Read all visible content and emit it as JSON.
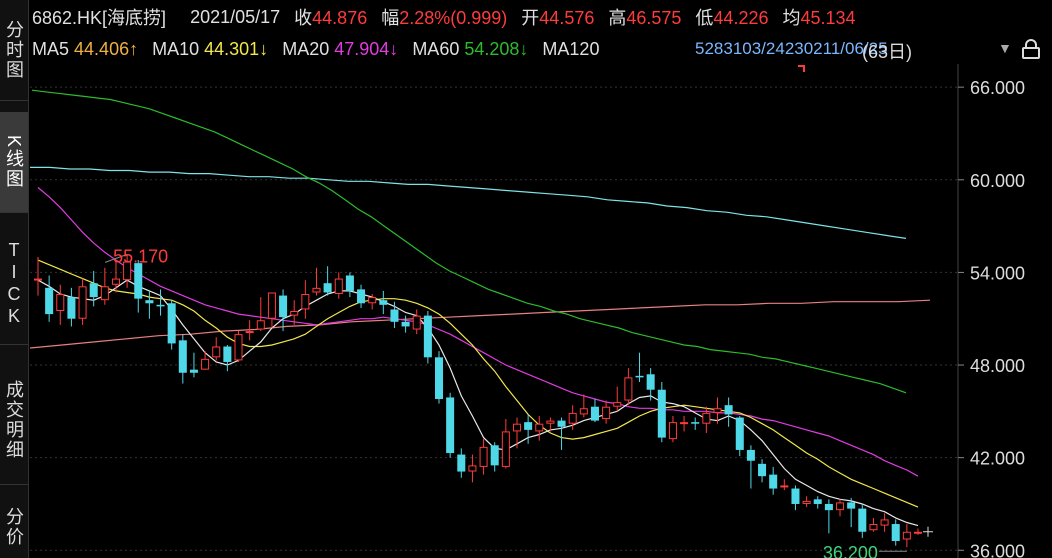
{
  "sidebar": {
    "tabs": [
      {
        "label": "分时图",
        "active": false
      },
      {
        "label": "K线图",
        "active": true
      },
      {
        "label": "TICK",
        "active": false
      },
      {
        "label": "成交明细",
        "active": false
      },
      {
        "label": "分价",
        "active": false
      }
    ]
  },
  "header": {
    "symbol": "6862.HK[海底捞]",
    "date": "2021/05/17",
    "close_label": "收",
    "close_value": "44.876",
    "change_label": "幅",
    "change_value": "2.28%(0.999)",
    "open_label": "开",
    "open_value": "44.576",
    "high_label": "高",
    "high_value": "46.575",
    "low_label": "低",
    "low_value": "44.226",
    "avg_label": "均",
    "avg_value": "45.134"
  },
  "ma_bar": {
    "ma5_label": "MA5",
    "ma5_value": "44.406↑",
    "ma10_label": "MA10",
    "ma10_value": "44.301↓",
    "ma20_label": "MA20",
    "ma20_value": "47.904↓",
    "ma60_label": "MA60",
    "ma60_value": "54.208↓",
    "ma120_label": "MA120",
    "overlay_text": "5283103/24230211/06/25",
    "period": "(63日)"
  },
  "colors": {
    "up": "#ff3b3b",
    "down": "#4fd9e8",
    "ma5": "#e8e8e8",
    "ma10": "#f2e74c",
    "ma20": "#e03ce0",
    "ma60": "#2dbb2d",
    "ma120": "#7ee3e8",
    "ma250": "#e88080",
    "high_annot": "#ff3b3b",
    "low_annot": "#3bd47a"
  },
  "icons": {
    "dropdown": "triangle-down-icon",
    "lock": "lock-icon"
  },
  "chart_data": {
    "type": "candlestick",
    "y_ticks": [
      "66.000",
      "60.000",
      "54.000",
      "48.000",
      "42.000",
      "36.000"
    ],
    "ylim": [
      35.5,
      67.5
    ],
    "annotations": {
      "high": "55.170",
      "low": "36.200"
    },
    "candles": [
      [
        53.6,
        53.6,
        55.0,
        52.5
      ],
      [
        53.0,
        51.3,
        53.8,
        50.8
      ],
      [
        51.5,
        52.6,
        53.2,
        50.6
      ],
      [
        52.4,
        51.0,
        53.0,
        50.5
      ],
      [
        51.0,
        53.1,
        53.6,
        50.6
      ],
      [
        53.3,
        52.4,
        54.1,
        51.8
      ],
      [
        52.2,
        53.1,
        54.3,
        51.9
      ],
      [
        53.2,
        53.6,
        54.7,
        52.7
      ],
      [
        53.5,
        54.7,
        55.17,
        53.0
      ],
      [
        54.6,
        52.3,
        54.8,
        51.4
      ],
      [
        52.2,
        52.0,
        52.8,
        51.0
      ],
      [
        51.9,
        51.8,
        52.9,
        51.2
      ],
      [
        52.0,
        49.4,
        52.2,
        49.0
      ],
      [
        49.6,
        47.5,
        50.0,
        46.8
      ],
      [
        47.7,
        47.5,
        48.8,
        47.2
      ],
      [
        47.7,
        48.4,
        48.9,
        47.7
      ],
      [
        48.5,
        49.2,
        49.8,
        48.3
      ],
      [
        49.2,
        48.2,
        49.3,
        47.6
      ],
      [
        48.3,
        50.0,
        50.2,
        48.2
      ],
      [
        50.2,
        50.2,
        50.9,
        49.6
      ],
      [
        50.3,
        50.9,
        52.4,
        50.2
      ],
      [
        51.0,
        52.7,
        52.7,
        50.4
      ],
      [
        52.5,
        51.1,
        52.9,
        50.2
      ],
      [
        51.2,
        51.5,
        52.2,
        50.6
      ],
      [
        51.6,
        52.6,
        53.5,
        51.0
      ],
      [
        52.7,
        53.0,
        54.3,
        52.5
      ],
      [
        53.3,
        52.7,
        54.4,
        52.5
      ],
      [
        52.6,
        53.6,
        54.0,
        52.3
      ],
      [
        53.8,
        52.8,
        54.0,
        52.4
      ],
      [
        52.9,
        52.0,
        53.2,
        51.7
      ],
      [
        52.0,
        52.4,
        52.6,
        51.6
      ],
      [
        52.2,
        51.9,
        52.8,
        51.3
      ],
      [
        51.6,
        50.8,
        52.1,
        50.4
      ],
      [
        50.8,
        50.5,
        51.2,
        50.1
      ],
      [
        50.3,
        51.2,
        51.6,
        50.0
      ],
      [
        51.2,
        48.5,
        51.5,
        48.1
      ],
      [
        48.5,
        45.8,
        48.9,
        45.5
      ],
      [
        45.9,
        42.3,
        46.2,
        42.0
      ],
      [
        42.2,
        41.1,
        42.6,
        40.7
      ],
      [
        41.1,
        41.5,
        42.2,
        40.4
      ],
      [
        41.4,
        42.7,
        43.2,
        40.9
      ],
      [
        42.8,
        41.5,
        43.0,
        41.1
      ],
      [
        41.4,
        43.7,
        44.5,
        41.3
      ],
      [
        43.7,
        44.2,
        44.6,
        42.6
      ],
      [
        44.3,
        43.8,
        44.8,
        42.9
      ],
      [
        43.7,
        44.2,
        44.7,
        43.1
      ],
      [
        44.2,
        44.4,
        44.6,
        43.7
      ],
      [
        44.4,
        44.0,
        44.6,
        42.5
      ],
      [
        44.2,
        44.9,
        45.4,
        43.8
      ],
      [
        44.8,
        45.2,
        46.1,
        44.6
      ],
      [
        45.3,
        44.4,
        45.8,
        44.3
      ],
      [
        44.5,
        45.3,
        45.7,
        44.2
      ],
      [
        45.3,
        45.6,
        46.6,
        45.0
      ],
      [
        45.7,
        47.2,
        47.8,
        45.4
      ],
      [
        47.3,
        47.2,
        48.8,
        46.9
      ],
      [
        47.4,
        46.4,
        47.8,
        45.7
      ],
      [
        46.4,
        43.3,
        46.9,
        43.0
      ],
      [
        43.2,
        44.3,
        44.7,
        43.0
      ],
      [
        44.2,
        44.3,
        44.7,
        43.7
      ],
      [
        44.3,
        44.2,
        44.6,
        43.8
      ],
      [
        44.2,
        44.9,
        45.3,
        43.6
      ],
      [
        44.9,
        45.2,
        45.9,
        44.2
      ],
      [
        45.4,
        44.8,
        45.9,
        44.0
      ],
      [
        44.6,
        42.5,
        44.7,
        42.1
      ],
      [
        42.5,
        41.8,
        42.8,
        40.0
      ],
      [
        41.6,
        40.8,
        41.9,
        40.4
      ],
      [
        40.9,
        40.0,
        41.4,
        39.6
      ],
      [
        40.2,
        40.2,
        40.6,
        39.9
      ],
      [
        40.0,
        39.0,
        40.2,
        38.6
      ],
      [
        39.0,
        39.2,
        39.5,
        38.8
      ],
      [
        39.3,
        39.0,
        39.5,
        38.7
      ],
      [
        39.0,
        38.6,
        39.3,
        37.1
      ],
      [
        38.6,
        39.1,
        39.3,
        38.2
      ],
      [
        39.1,
        38.7,
        39.4,
        37.5
      ],
      [
        38.7,
        37.2,
        39.0,
        36.8
      ],
      [
        37.3,
        37.7,
        38.1,
        37.2
      ],
      [
        37.6,
        38.0,
        38.4,
        37.2
      ],
      [
        37.7,
        36.6,
        38.0,
        36.3
      ],
      [
        36.7,
        37.2,
        37.7,
        36.2
      ],
      [
        37.2,
        37.2,
        37.4,
        37.0
      ]
    ],
    "ma5": [
      53.5,
      53.1,
      52.6,
      52.4,
      52.3,
      52.2,
      52.5,
      53.0,
      53.5,
      53.1,
      52.8,
      52.5,
      51.6,
      50.6,
      49.7,
      48.8,
      48.2,
      48.0,
      48.3,
      48.9,
      49.5,
      50.4,
      51.0,
      51.3,
      51.8,
      52.2,
      52.6,
      52.8,
      52.8,
      52.6,
      52.4,
      52.1,
      51.8,
      51.4,
      51.2,
      50.4,
      49.3,
      47.8,
      46.0,
      44.7,
      43.3,
      42.6,
      42.5,
      42.9,
      43.3,
      43.5,
      43.8,
      43.9,
      44.1,
      44.4,
      44.6,
      44.8,
      45.0,
      45.5,
      45.9,
      46.0,
      45.6,
      45.5,
      45.3,
      44.9,
      44.5,
      44.4,
      44.7,
      44.4,
      43.8,
      43.1,
      42.2,
      41.3,
      40.6,
      40.2,
      39.8,
      39.5,
      39.3,
      39.2,
      39.0,
      38.7,
      38.5,
      38.1,
      37.8,
      37.6
    ],
    "ma10": [
      54.8,
      54.5,
      54.2,
      53.9,
      53.6,
      53.3,
      53.0,
      52.8,
      52.7,
      52.6,
      52.4,
      52.3,
      52.2,
      51.9,
      51.5,
      50.9,
      50.4,
      49.8,
      49.4,
      49.2,
      49.2,
      49.3,
      49.5,
      49.7,
      50.0,
      50.5,
      51.0,
      51.4,
      51.8,
      52.1,
      52.2,
      52.3,
      52.3,
      52.2,
      52.0,
      51.7,
      51.3,
      50.7,
      50.0,
      49.3,
      48.4,
      47.6,
      46.6,
      45.7,
      44.8,
      44.1,
      43.6,
      43.3,
      43.2,
      43.3,
      43.5,
      43.7,
      43.9,
      44.3,
      44.7,
      45.0,
      45.2,
      45.3,
      45.4,
      45.3,
      45.2,
      45.1,
      45.0,
      44.9,
      44.6,
      44.2,
      43.8,
      43.3,
      42.8,
      42.3,
      41.9,
      41.4,
      41.0,
      40.6,
      40.3,
      40.0,
      39.7,
      39.4,
      39.1,
      38.8
    ],
    "ma20": [
      59.5,
      58.9,
      58.2,
      57.4,
      56.6,
      55.9,
      55.3,
      54.8,
      54.3,
      53.9,
      53.5,
      53.1,
      52.8,
      52.5,
      52.2,
      51.9,
      51.7,
      51.5,
      51.3,
      51.2,
      51.1,
      51.0,
      50.9,
      50.8,
      50.7,
      50.6,
      50.7,
      50.8,
      50.9,
      51.0,
      51.0,
      51.1,
      51.0,
      50.9,
      50.8,
      50.6,
      50.3,
      50.0,
      49.6,
      49.2,
      48.8,
      48.4,
      48.0,
      47.7,
      47.4,
      47.1,
      46.8,
      46.5,
      46.2,
      46.0,
      45.8,
      45.6,
      45.5,
      45.3,
      45.2,
      45.2,
      45.1,
      45.1,
      45.0,
      45.0,
      45.0,
      44.9,
      44.9,
      44.8,
      44.7,
      44.5,
      44.4,
      44.2,
      44.0,
      43.8,
      43.6,
      43.4,
      43.1,
      42.8,
      42.5,
      42.2,
      41.8,
      41.5,
      41.2,
      40.8
    ],
    "ma60": [
      65.8,
      65.7,
      65.6,
      65.5,
      65.4,
      65.3,
      65.2,
      65.0,
      64.8,
      64.6,
      64.3,
      64.0,
      63.7,
      63.4,
      63.1,
      62.7,
      62.3,
      61.9,
      61.5,
      61.1,
      60.7,
      60.2,
      59.8,
      59.3,
      58.7,
      58.1,
      57.6,
      57.0,
      56.4,
      55.8,
      55.2,
      54.6,
      54.1,
      53.7,
      53.3,
      52.9,
      52.6,
      52.3,
      52.0,
      51.8,
      51.5,
      51.3,
      51.0,
      50.8,
      50.6,
      50.4,
      50.1,
      49.9,
      49.7,
      49.5,
      49.3,
      49.2,
      49.0,
      48.9,
      48.8,
      48.7,
      48.5,
      48.4,
      48.2,
      48.0,
      47.8,
      47.6,
      47.4,
      47.2,
      47.0,
      46.8,
      46.5,
      46.2
    ],
    "ma120": [
      60.8,
      60.8,
      60.7,
      60.7,
      60.6,
      60.6,
      60.5,
      60.5,
      60.4,
      60.4,
      60.3,
      60.2,
      60.2,
      60.1,
      60.1,
      60.0,
      59.9,
      59.9,
      59.8,
      59.7,
      59.7,
      59.6,
      59.5,
      59.4,
      59.3,
      59.2,
      59.1,
      59.0,
      58.9,
      58.7,
      58.6,
      58.5,
      58.3,
      58.2,
      58.0,
      57.9,
      57.7,
      57.6,
      57.4,
      57.2,
      57.0,
      56.8,
      56.6,
      56.4,
      56.2
    ],
    "ma250": [
      49.1,
      49.3,
      49.5,
      49.7,
      49.9,
      50.0,
      50.2,
      50.3,
      50.5,
      50.6,
      50.8,
      50.9,
      51.0,
      51.1,
      51.2,
      51.3,
      51.4,
      51.5,
      51.6,
      51.7,
      51.8,
      51.9,
      51.9,
      52.0,
      52.0,
      52.1,
      52.1,
      52.1,
      52.2
    ]
  }
}
